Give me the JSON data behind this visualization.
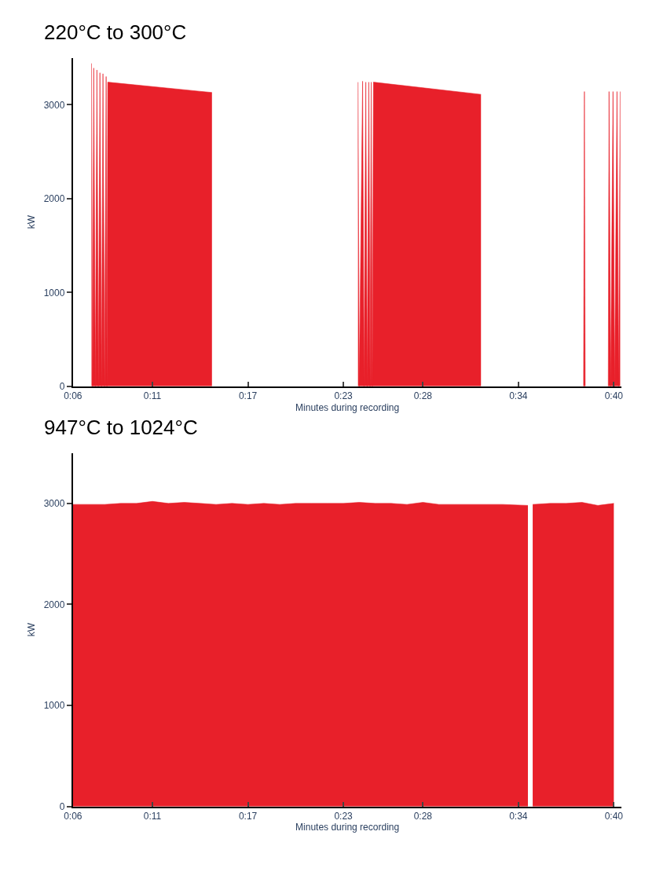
{
  "chart_data": [
    {
      "type": "area",
      "title": "220°C to 300°C",
      "xlabel": "Minutes during recording",
      "ylabel": "kW",
      "xlim": [
        6,
        40.5
      ],
      "ylim": [
        0,
        3500
      ],
      "yticks": [
        0,
        1000,
        2000,
        3000
      ],
      "xticks": [
        {
          "value": 6,
          "label": "0:06"
        },
        {
          "value": 11,
          "label": "0:11"
        },
        {
          "value": 17,
          "label": "0:17"
        },
        {
          "value": 23,
          "label": "0:23"
        },
        {
          "value": 28,
          "label": "0:28"
        },
        {
          "value": 34,
          "label": "0:34"
        },
        {
          "value": 40,
          "label": "0:40"
        }
      ],
      "series": [
        {
          "color": "#e8202a",
          "x": [
            7.17,
            7.24,
            7.31,
            7.41,
            7.51,
            7.6,
            7.7,
            7.8,
            7.89,
            7.99,
            8.09,
            8.14,
            8.19,
            14.74,
            14.75,
            23.92,
            24.0,
            24.21,
            24.3,
            24.41,
            24.5,
            24.6,
            24.68,
            24.75,
            24.82,
            24.89,
            31.65,
            31.7,
            38.1,
            38.15,
            38.2,
            38.25,
            39.65,
            39.7,
            39.8,
            39.95,
            40.05,
            40.2,
            40.3,
            40.4
          ],
          "values": [
            3440,
            0,
            3390,
            0,
            3370,
            0,
            3340,
            0,
            3330,
            0,
            3300,
            0,
            3240,
            3130,
            null,
            3240,
            0,
            3250,
            0,
            3240,
            0,
            3240,
            0,
            3240,
            0,
            3240,
            3110,
            null,
            0,
            3140,
            0,
            null,
            0,
            3140,
            0,
            3140,
            0,
            3140,
            0,
            3140
          ]
        }
      ]
    },
    {
      "type": "area",
      "title": "947°C to 1024°C",
      "xlabel": "Minutes during recording",
      "ylabel": "kW",
      "xlim": [
        6,
        40.5
      ],
      "ylim": [
        0,
        3500
      ],
      "yticks": [
        0,
        1000,
        2000,
        3000
      ],
      "xticks": [
        {
          "value": 6,
          "label": "0:06"
        },
        {
          "value": 11,
          "label": "0:11"
        },
        {
          "value": 17,
          "label": "0:17"
        },
        {
          "value": 23,
          "label": "0:23"
        },
        {
          "value": 28,
          "label": "0:28"
        },
        {
          "value": 34,
          "label": "0:34"
        },
        {
          "value": 40,
          "label": "0:40"
        }
      ],
      "series": [
        {
          "color": "#e8202a",
          "x": [
            6,
            7,
            8,
            9,
            10,
            11,
            12,
            13,
            14,
            15,
            16,
            17,
            18,
            19,
            20,
            21,
            22,
            23,
            24,
            25,
            26,
            27,
            28,
            29,
            30,
            31,
            32,
            33,
            34.6,
            34.75,
            34.9,
            36,
            37,
            38,
            39,
            40
          ],
          "values": [
            2990,
            2990,
            2990,
            3000,
            3000,
            3020,
            3000,
            3010,
            3000,
            2990,
            3000,
            2990,
            3000,
            2990,
            3000,
            3000,
            3000,
            3000,
            3010,
            3000,
            3000,
            2990,
            3010,
            2990,
            2990,
            2990,
            2990,
            2990,
            2980,
            null,
            2990,
            3000,
            3000,
            3010,
            2980,
            3000
          ]
        }
      ]
    }
  ]
}
